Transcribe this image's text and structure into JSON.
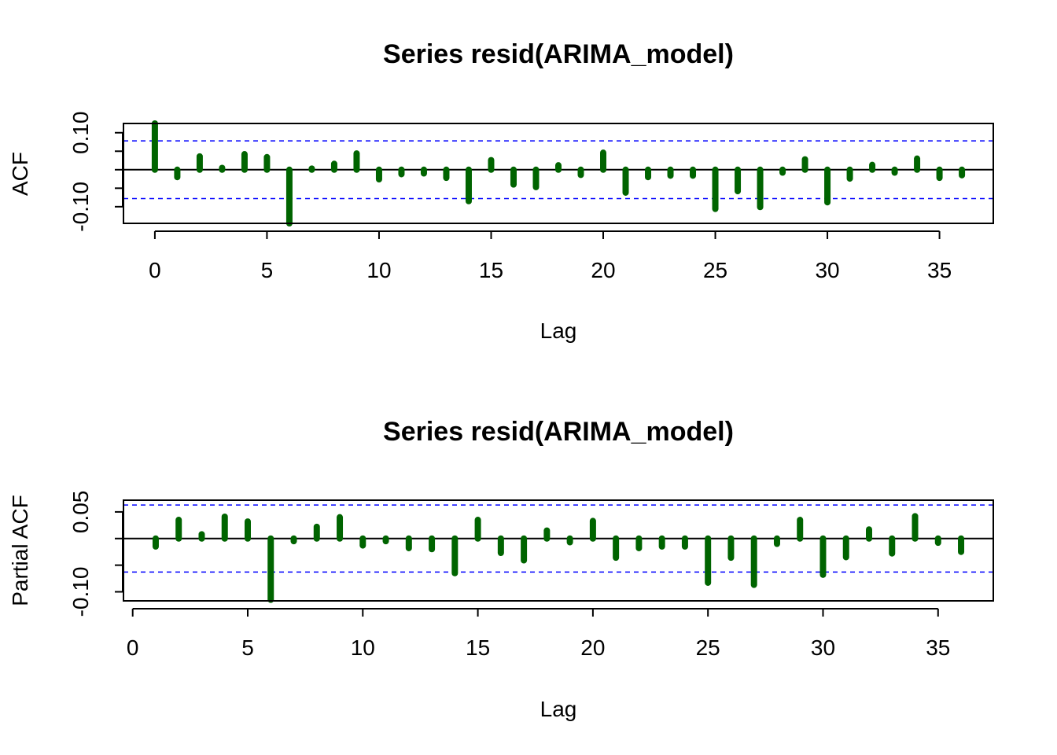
{
  "chart_data": [
    {
      "type": "bar",
      "subtype": "acf",
      "title": "Series  resid(ARIMA_model)",
      "xlabel": "Lag",
      "ylabel": "ACF",
      "xlim": [
        -1.4,
        37.4
      ],
      "ylim": [
        -0.145,
        0.125
      ],
      "xticks": [
        0,
        5,
        10,
        15,
        20,
        25,
        30,
        35
      ],
      "yticks": [
        -0.1,
        -0.05,
        0.0,
        0.05,
        0.1
      ],
      "ytick_labels": [
        "-0.10",
        "",
        "",
        "",
        "0.10"
      ],
      "confidence_limit": 0.078,
      "colors": {
        "bars": "#006400",
        "confidence": "#0000ff",
        "zero": "#000000"
      },
      "lags": [
        0,
        1,
        2,
        3,
        4,
        5,
        6,
        7,
        8,
        9,
        10,
        11,
        12,
        13,
        14,
        15,
        16,
        17,
        18,
        19,
        20,
        21,
        22,
        23,
        24,
        25,
        26,
        27,
        28,
        29,
        30,
        31,
        32,
        33,
        34,
        35,
        36
      ],
      "values": [
        0.13,
        -0.02,
        0.036,
        0.005,
        0.042,
        0.034,
        -0.145,
        0.003,
        0.016,
        0.044,
        -0.026,
        -0.012,
        -0.01,
        -0.022,
        -0.085,
        0.026,
        -0.04,
        -0.047,
        0.012,
        -0.014,
        0.046,
        -0.062,
        -0.02,
        -0.016,
        -0.016,
        -0.106,
        -0.058,
        -0.101,
        -0.008,
        0.028,
        -0.088,
        -0.024,
        0.013,
        -0.008,
        0.03,
        -0.022,
        -0.015
      ]
    },
    {
      "type": "bar",
      "subtype": "pacf",
      "title": "Series  resid(ARIMA_model)",
      "xlabel": "Lag",
      "ylabel": "Partial ACF",
      "xlim": [
        -0.4,
        37.4
      ],
      "ylim": [
        -0.117,
        0.072
      ],
      "xticks": [
        0,
        5,
        10,
        15,
        20,
        25,
        30,
        35
      ],
      "yticks": [
        -0.1,
        -0.05,
        0.0,
        0.05
      ],
      "ytick_labels": [
        "-0.10",
        "",
        "",
        "0.05"
      ],
      "confidence_limit": 0.063,
      "colors": {
        "bars": "#006400",
        "confidence": "#0000ff",
        "zero": "#000000"
      },
      "lags": [
        1,
        2,
        3,
        4,
        5,
        6,
        7,
        8,
        9,
        10,
        11,
        12,
        13,
        14,
        15,
        16,
        17,
        18,
        19,
        20,
        21,
        22,
        23,
        24,
        25,
        26,
        27,
        28,
        29,
        30,
        31,
        32,
        33,
        34,
        35,
        36
      ],
      "values": [
        -0.015,
        0.035,
        0.008,
        0.041,
        0.032,
        -0.115,
        -0.005,
        0.022,
        0.04,
        -0.013,
        -0.005,
        -0.018,
        -0.02,
        -0.065,
        0.035,
        -0.027,
        -0.041,
        0.015,
        -0.007,
        0.033,
        -0.036,
        -0.018,
        -0.015,
        -0.015,
        -0.083,
        -0.036,
        -0.087,
        -0.01,
        0.035,
        -0.068,
        -0.035,
        0.017,
        -0.028,
        0.042,
        -0.008,
        -0.025
      ]
    }
  ]
}
